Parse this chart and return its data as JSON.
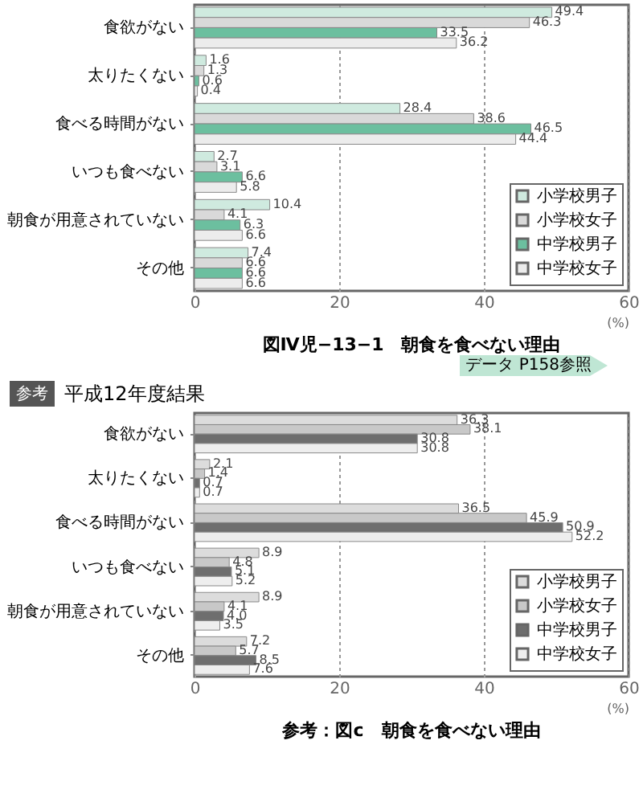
{
  "chart_data": [
    {
      "type": "bar",
      "orientation": "horizontal",
      "title": "図Ⅳ児−13−1　朝食を食べない理由",
      "xlabel": "(%)",
      "annotations": [
        "データ P158参照"
      ],
      "categories": [
        "食欲がない",
        "太りたくない",
        "食べる時間がない",
        "いつも食べない",
        "朝食が用意されていない",
        "その他"
      ],
      "series": [
        {
          "name": "小学校男子",
          "color": "#cfeadf",
          "values": [
            49.4,
            1.6,
            28.4,
            2.7,
            10.4,
            7.4
          ]
        },
        {
          "name": "小学校女子",
          "color": "#d9d9d9",
          "values": [
            46.3,
            1.3,
            38.6,
            3.1,
            4.1,
            6.6
          ]
        },
        {
          "name": "中学校男子",
          "color": "#6cbf9f",
          "values": [
            33.5,
            0.6,
            46.5,
            6.6,
            6.3,
            6.6
          ]
        },
        {
          "name": "中学校女子",
          "color": "#ececec",
          "values": [
            36.2,
            0.4,
            44.4,
            5.8,
            6.6,
            6.6
          ]
        }
      ],
      "xlim": [
        0,
        60
      ],
      "xticks": [
        0,
        20,
        40,
        60
      ],
      "grid": "x",
      "legend": "bottom right",
      "data_labels": true
    },
    {
      "type": "bar",
      "orientation": "horizontal",
      "title": "参考：図c　朝食を食べない理由",
      "subtitle": "平成12年度結果",
      "xlabel": "(%)",
      "annotations": [
        "参考"
      ],
      "categories": [
        "食欲がない",
        "太りたくない",
        "食べる時間がない",
        "いつも食べない",
        "朝食が用意されていない",
        "その他"
      ],
      "series": [
        {
          "name": "小学校男子",
          "color": "#dcdcdc",
          "values": [
            36.3,
            2.1,
            36.5,
            8.9,
            8.9,
            7.2
          ]
        },
        {
          "name": "小学校女子",
          "color": "#c8c8c8",
          "values": [
            38.1,
            1.4,
            45.9,
            4.8,
            4.1,
            5.7
          ]
        },
        {
          "name": "中学校男子",
          "color": "#6e6e6e",
          "values": [
            30.8,
            0.7,
            50.9,
            5.1,
            4.0,
            8.5
          ],
          "value_labels": [
            "30.8",
            "0.7",
            "50.9",
            "5.1",
            "4.0",
            "8.5"
          ]
        },
        {
          "name": "中学校女子",
          "color": "#eeeeee",
          "values": [
            30.8,
            0.7,
            52.2,
            5.2,
            3.5,
            7.6
          ]
        }
      ],
      "xlim": [
        0,
        60
      ],
      "xticks": [
        0,
        20,
        40,
        60
      ],
      "grid": "x",
      "legend": "bottom right",
      "data_labels": true
    }
  ]
}
